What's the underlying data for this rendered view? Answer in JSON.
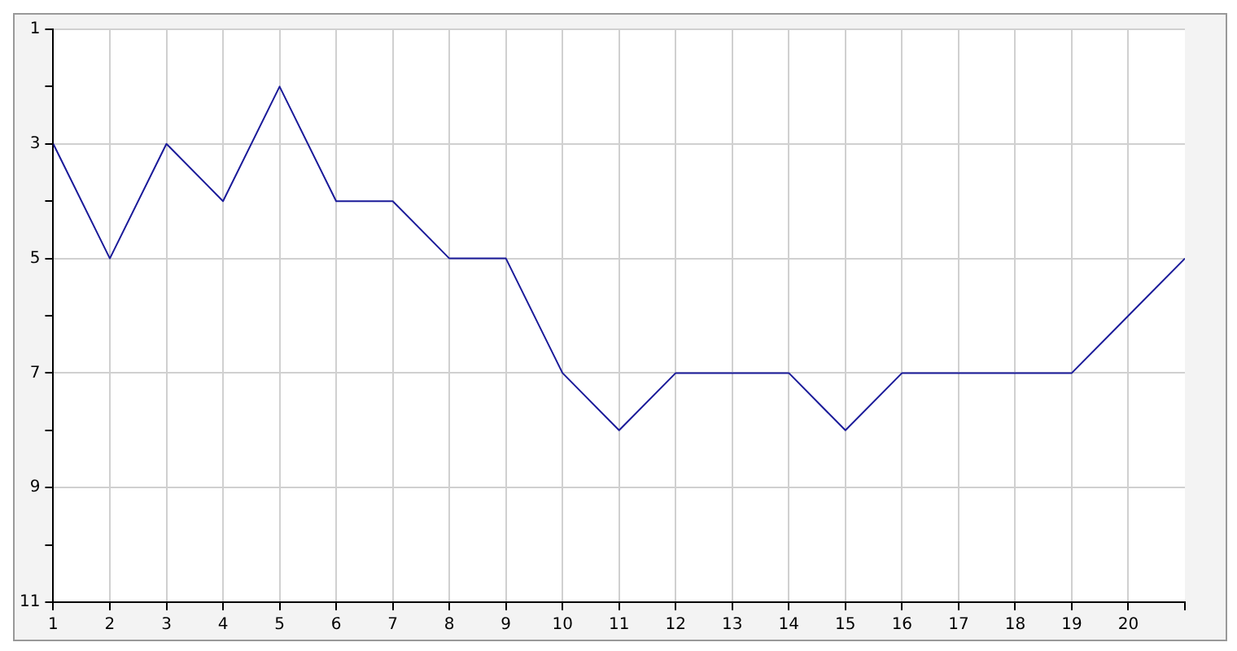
{
  "chart_data": {
    "type": "line",
    "x": [
      1,
      2,
      3,
      4,
      5,
      6,
      7,
      8,
      9,
      10,
      11,
      12,
      13,
      14,
      15,
      16,
      17,
      18,
      19,
      20,
      21
    ],
    "series": [
      {
        "color": "#1a1a99",
        "values": [
          3,
          5,
          3,
          4,
          2,
          4,
          4,
          5,
          5,
          7,
          8,
          7,
          7,
          7,
          8,
          7,
          7,
          7,
          7,
          6,
          5
        ]
      }
    ],
    "xlim": [
      1,
      21
    ],
    "xticks": [
      1,
      2,
      3,
      4,
      5,
      6,
      7,
      8,
      9,
      10,
      11,
      12,
      13,
      14,
      15,
      16,
      17,
      18,
      19,
      20,
      {
        "value": 21,
        "label": null
      }
    ],
    "ylim": [
      11,
      1
    ],
    "yticks": [
      1,
      {
        "value": 2,
        "label": null
      },
      3,
      {
        "value": 4,
        "label": null
      },
      5,
      {
        "value": 6,
        "label": null
      },
      7,
      {
        "value": 8,
        "label": null
      },
      9,
      {
        "value": 10,
        "label": null
      },
      11
    ],
    "grid": true,
    "legend": false,
    "marker": "none",
    "line_style": "solid"
  }
}
